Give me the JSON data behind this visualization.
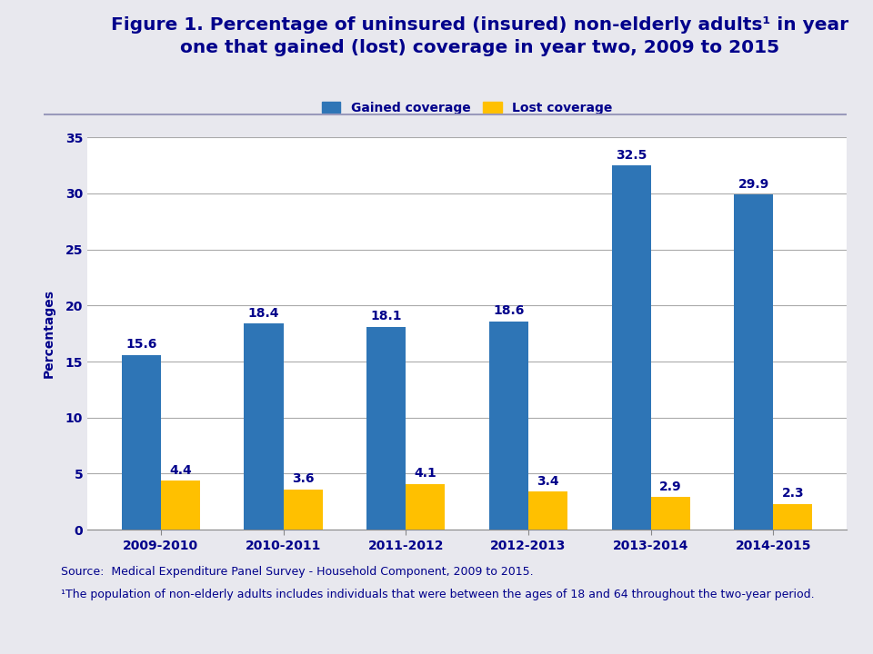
{
  "title_line1": "Figure 1. Percentage of uninsured (insured) non-elderly adults¹ in year",
  "title_line2": "one that gained (lost) coverage in year two, 2009 to 2015",
  "categories": [
    "2009-2010",
    "2010-2011",
    "2011-2012",
    "2012-2013",
    "2013-2014",
    "2014-2015"
  ],
  "gained": [
    15.6,
    18.4,
    18.1,
    18.6,
    32.5,
    29.9
  ],
  "lost": [
    4.4,
    3.6,
    4.1,
    3.4,
    2.9,
    2.3
  ],
  "gained_color": "#2E75B6",
  "lost_color": "#FFC000",
  "ylabel": "Percentages",
  "ylim": [
    0,
    35
  ],
  "yticks": [
    0,
    5,
    10,
    15,
    20,
    25,
    30,
    35
  ],
  "legend_gained": "Gained coverage",
  "legend_lost": "Lost coverage",
  "source_line1": "Source:  Medical Expenditure Panel Survey - Household Component, 2009 to 2015.",
  "source_line2": "¹The population of non-elderly adults includes individuals that were between the ages of 18 and 64 throughout the two-year period.",
  "text_color": "#00008B",
  "bg_color": "#E8E8EE",
  "plot_bg_color": "#FFFFFF",
  "bar_width": 0.32,
  "title_fontsize": 14.5,
  "label_fontsize": 10,
  "tick_fontsize": 10,
  "legend_fontsize": 10,
  "annotation_fontsize": 10,
  "source_fontsize": 9,
  "separator_color": "#9999BB",
  "header_bg": "#D8D8E8"
}
